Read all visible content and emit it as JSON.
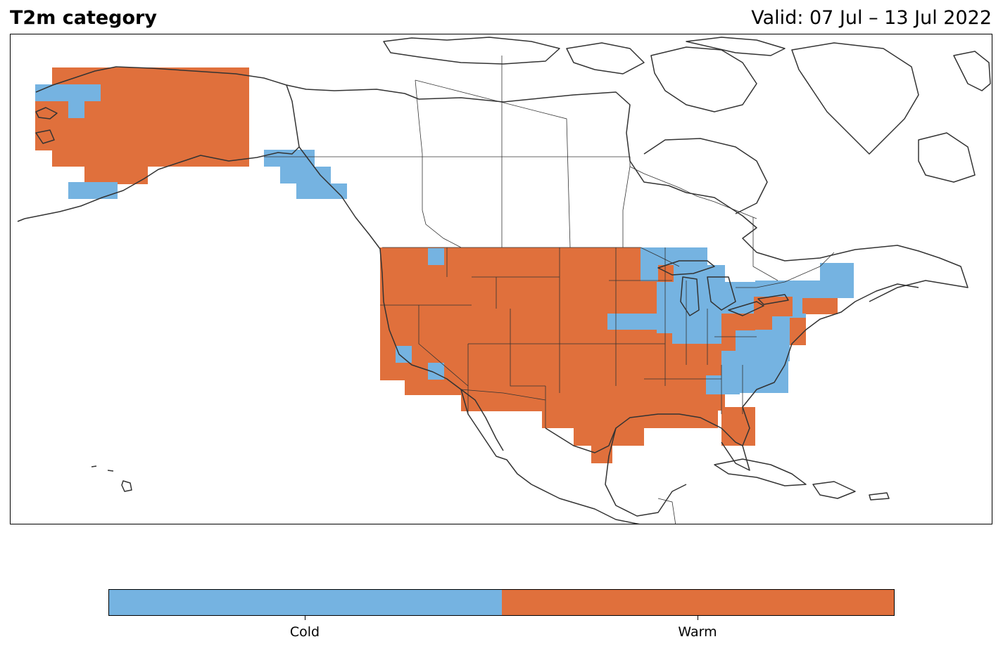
{
  "title": "T2m category",
  "valid": "Valid: 07 Jul – 13 Jul 2022",
  "colors": {
    "cold": "#75b3e1",
    "warm": "#e0703c",
    "coast": "#333333",
    "border": "#333333"
  },
  "legend": {
    "categories": [
      {
        "label": "Cold",
        "color": "#75b3e1"
      },
      {
        "label": "Warm",
        "color": "#e0703c"
      }
    ]
  }
}
